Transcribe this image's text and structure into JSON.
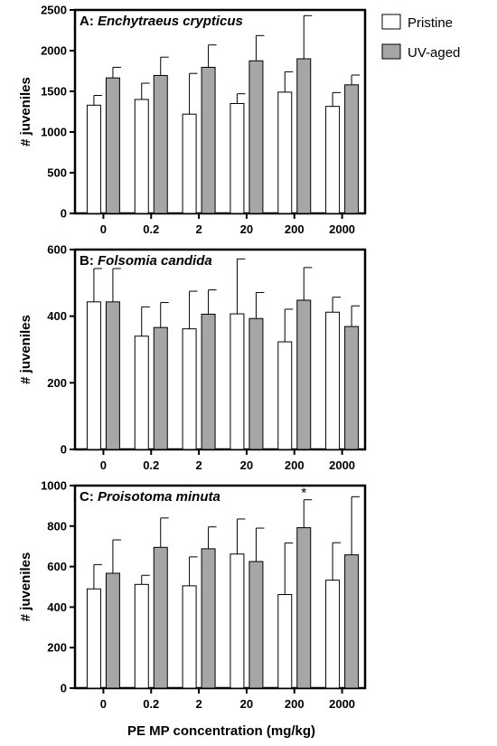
{
  "chart_data": [
    {
      "type": "bar",
      "panel_letter": "A:",
      "title": "Enchytraeus crypticus",
      "ylabel": "# juveniles",
      "ylim": [
        0,
        2500
      ],
      "yticks": [
        0,
        500,
        1000,
        1500,
        2000,
        2500
      ],
      "categories": [
        "0",
        "0.2",
        "2",
        "20",
        "200",
        "2000"
      ],
      "series": [
        {
          "name": "Pristine",
          "values": [
            1330,
            1400,
            1220,
            1350,
            1490,
            1315
          ],
          "errors": [
            120,
            200,
            500,
            120,
            250,
            170
          ]
        },
        {
          "name": "UV-aged",
          "values": [
            1665,
            1695,
            1795,
            1875,
            1900,
            1580
          ],
          "errors": [
            130,
            225,
            275,
            310,
            530,
            120
          ]
        }
      ],
      "annotations": []
    },
    {
      "type": "bar",
      "panel_letter": "B:",
      "title": "Folsomia candida",
      "ylabel": "# juveniles",
      "ylim": [
        0,
        600
      ],
      "yticks": [
        0,
        200,
        400,
        600
      ],
      "categories": [
        "0",
        "0.2",
        "2",
        "20",
        "200",
        "2000"
      ],
      "series": [
        {
          "name": "Pristine",
          "values": [
            443,
            340,
            362,
            407,
            323,
            412
          ],
          "errors": [
            100,
            88,
            113,
            165,
            98,
            45
          ]
        },
        {
          "name": "UV-aged",
          "values": [
            443,
            366,
            406,
            393,
            448,
            369
          ],
          "errors": [
            100,
            75,
            73,
            78,
            98,
            62
          ]
        }
      ],
      "annotations": []
    },
    {
      "type": "bar",
      "panel_letter": "C:",
      "title": "Proisotoma minuta",
      "ylabel": "# juveniles",
      "ylim": [
        0,
        1000
      ],
      "yticks": [
        0,
        200,
        400,
        600,
        800,
        1000
      ],
      "categories": [
        "0",
        "0.2",
        "2",
        "20",
        "200",
        "2000"
      ],
      "series": [
        {
          "name": "Pristine",
          "values": [
            490,
            512,
            505,
            662,
            462,
            533
          ],
          "errors": [
            120,
            45,
            143,
            173,
            255,
            185
          ]
        },
        {
          "name": "UV-aged",
          "values": [
            567,
            695,
            688,
            625,
            792,
            658
          ],
          "errors": [
            165,
            145,
            108,
            165,
            138,
            287
          ]
        }
      ],
      "annotations": [
        {
          "category": "200",
          "series": "UV-aged",
          "text": "*"
        }
      ]
    }
  ],
  "xlabel": "PE MP concentration (mg/kg)",
  "legend": {
    "placement": "top-right",
    "items": [
      {
        "label": "Pristine",
        "color": "#ffffff"
      },
      {
        "label": "UV-aged",
        "color": "#a6a6a6"
      }
    ]
  },
  "colors": {
    "pristine": "#ffffff",
    "uv_aged": "#a6a6a6",
    "outline": "#000000"
  }
}
